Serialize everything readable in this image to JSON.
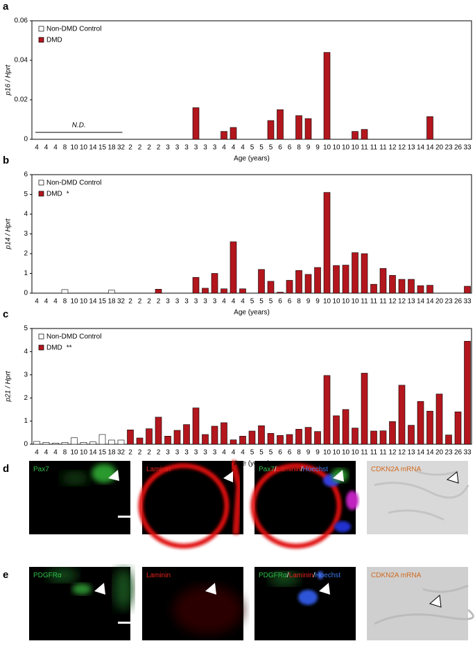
{
  "chart_data": [
    {
      "type": "bar",
      "panel_label": "a",
      "ylabel": "p16 / Hprt",
      "xlabel": "Age (years)",
      "categories": [
        "4",
        "4",
        "4",
        "8",
        "10",
        "10",
        "14",
        "15",
        "18",
        "32",
        "2",
        "2",
        "2",
        "2",
        "3",
        "3",
        "3",
        "3",
        "3",
        "3",
        "4",
        "4",
        "4",
        "5",
        "5",
        "5",
        "6",
        "6",
        "8",
        "9",
        "9",
        "10",
        "10",
        "10",
        "10",
        "11",
        "11",
        "11",
        "12",
        "12",
        "13",
        "14",
        "14",
        "20",
        "23",
        "26",
        "33"
      ],
      "series": [
        {
          "name": "Non-DMD Control",
          "color": "#ffffff",
          "values": [
            0,
            0,
            0,
            0,
            0,
            0,
            0,
            0,
            0,
            0,
            null,
            null,
            null,
            null,
            null,
            null,
            null,
            null,
            null,
            null,
            null,
            null,
            null,
            null,
            null,
            null,
            null,
            null,
            null,
            null,
            null,
            null,
            null,
            null,
            null,
            null,
            null,
            null,
            null,
            null,
            null,
            null,
            null,
            null,
            null,
            null,
            null
          ]
        },
        {
          "name": "DMD",
          "color": "#b3161d",
          "values": [
            null,
            null,
            null,
            null,
            null,
            null,
            null,
            null,
            null,
            null,
            0,
            0,
            0,
            0,
            0,
            0,
            0,
            0.016,
            0,
            0,
            0.004,
            0.006,
            0,
            0,
            0,
            0.0095,
            0.015,
            0,
            0.012,
            0.0105,
            0,
            0.044,
            0,
            0,
            0.004,
            0.005,
            0,
            0,
            0,
            0,
            0,
            0,
            0.0115,
            0,
            0,
            0,
            0
          ]
        }
      ],
      "annotation": "N.D.",
      "ylim": [
        0,
        0.06
      ],
      "yticks": [
        0,
        0.02,
        0.04,
        0.06
      ],
      "legend": "upper left"
    },
    {
      "type": "bar",
      "panel_label": "b",
      "ylabel": "p14 / Hprt",
      "xlabel": "Age (years)",
      "categories": [
        "4",
        "4",
        "4",
        "8",
        "10",
        "10",
        "14",
        "15",
        "18",
        "32",
        "2",
        "2",
        "2",
        "2",
        "3",
        "3",
        "3",
        "3",
        "3",
        "3",
        "4",
        "4",
        "4",
        "5",
        "5",
        "5",
        "6",
        "6",
        "8",
        "9",
        "9",
        "10",
        "10",
        "10",
        "10",
        "11",
        "11",
        "11",
        "12",
        "12",
        "13",
        "14",
        "14",
        "20",
        "23",
        "26",
        "33"
      ],
      "series": [
        {
          "name": "Non-DMD Control",
          "color": "#ffffff",
          "values": [
            0,
            0,
            0,
            0.18,
            0,
            0,
            0,
            0,
            0.15,
            0,
            null,
            null,
            null,
            null,
            null,
            null,
            null,
            null,
            null,
            null,
            null,
            null,
            null,
            null,
            null,
            null,
            null,
            null,
            null,
            null,
            null,
            null,
            null,
            null,
            null,
            null,
            null,
            null,
            null,
            null,
            null,
            null,
            null,
            null,
            null,
            null,
            null
          ]
        },
        {
          "name": "DMD",
          "color": "#b3161d",
          "significance": "*",
          "values": [
            null,
            null,
            null,
            null,
            null,
            null,
            null,
            null,
            null,
            null,
            0,
            0,
            0,
            0.2,
            0,
            0,
            0,
            0.8,
            0.25,
            1.0,
            0.22,
            2.6,
            0.22,
            0,
            1.2,
            0.6,
            0.05,
            0.65,
            1.15,
            0.95,
            1.3,
            5.1,
            1.4,
            1.42,
            2.05,
            2.0,
            0.45,
            1.25,
            0.9,
            0.7,
            0.7,
            0.38,
            0.4,
            0,
            0,
            0,
            0.35
          ]
        }
      ],
      "ylim": [
        0,
        6
      ],
      "yticks": [
        0,
        1,
        2,
        3,
        4,
        5,
        6
      ],
      "legend": "upper left"
    },
    {
      "type": "bar",
      "panel_label": "c",
      "ylabel": "p21 / Hprt",
      "xlabel": "Age (years)",
      "categories": [
        "4",
        "4",
        "4",
        "8",
        "10",
        "10",
        "14",
        "15",
        "18",
        "32",
        "2",
        "2",
        "2",
        "2",
        "3",
        "3",
        "3",
        "3",
        "3",
        "3",
        "4",
        "4",
        "4",
        "5",
        "5",
        "5",
        "6",
        "6",
        "8",
        "9",
        "9",
        "10",
        "10",
        "10",
        "10",
        "11",
        "11",
        "11",
        "12",
        "12",
        "13",
        "14",
        "14",
        "20",
        "23",
        "26",
        "33"
      ],
      "series": [
        {
          "name": "Non-DMD Control",
          "color": "#ffffff",
          "values": [
            0.12,
            0.08,
            0.05,
            0.08,
            0.28,
            0.08,
            0.1,
            0.42,
            0.18,
            0.18,
            null,
            null,
            null,
            null,
            null,
            null,
            null,
            null,
            null,
            null,
            null,
            null,
            null,
            null,
            null,
            null,
            null,
            null,
            null,
            null,
            null,
            null,
            null,
            null,
            null,
            null,
            null,
            null,
            null,
            null,
            null,
            null,
            null,
            null,
            null,
            null,
            null
          ]
        },
        {
          "name": "DMD",
          "color": "#b3161d",
          "significance": "**",
          "values": [
            null,
            null,
            null,
            null,
            null,
            null,
            null,
            null,
            null,
            null,
            0.62,
            0.27,
            0.67,
            1.17,
            0.35,
            0.6,
            0.85,
            1.57,
            0.42,
            0.78,
            0.93,
            0.19,
            0.35,
            0.57,
            0.8,
            0.47,
            0.38,
            0.42,
            0.65,
            0.73,
            0.55,
            2.97,
            1.23,
            1.5,
            0.7,
            3.07,
            0.57,
            0.58,
            0.98,
            2.55,
            0.82,
            1.85,
            1.43,
            2.17,
            0.4,
            1.4,
            4.45
          ]
        }
      ],
      "ylim": [
        0,
        5
      ],
      "yticks": [
        0,
        1,
        2,
        3,
        4,
        5
      ],
      "legend": "upper left"
    }
  ],
  "image_panels": [
    {
      "label": "d",
      "images": [
        {
          "caption": [
            {
              "text": "Pax7",
              "color": "#2fbf4a"
            }
          ]
        },
        {
          "caption": [
            {
              "text": "Laminin",
              "color": "#e8231f"
            }
          ]
        },
        {
          "caption": [
            {
              "text": "Pax7",
              "color": "#2fbf4a"
            },
            {
              "text": "/",
              "color": "#ffffff"
            },
            {
              "text": "Laminin",
              "color": "#e8231f"
            },
            {
              "text": "/",
              "color": "#ffffff"
            },
            {
              "text": "Hoechst",
              "color": "#3d7cf0"
            }
          ]
        },
        {
          "caption": [
            {
              "text": "CDKN2A mRNA",
              "color": "#d2691e"
            }
          ]
        }
      ]
    },
    {
      "label": "e",
      "images": [
        {
          "caption": [
            {
              "text": "PDGFRα",
              "color": "#2fbf4a"
            }
          ]
        },
        {
          "caption": [
            {
              "text": "Laminin",
              "color": "#e8231f"
            }
          ]
        },
        {
          "caption": [
            {
              "text": "PDGFRα",
              "color": "#2fbf4a"
            },
            {
              "text": "/",
              "color": "#ffffff"
            },
            {
              "text": "Laminin",
              "color": "#e8231f"
            },
            {
              "text": "/",
              "color": "#ffffff"
            },
            {
              "text": "Hoechst",
              "color": "#3d7cf0"
            }
          ]
        },
        {
          "caption": [
            {
              "text": "CDKN2A mRNA",
              "color": "#d2691e"
            }
          ]
        }
      ]
    }
  ]
}
